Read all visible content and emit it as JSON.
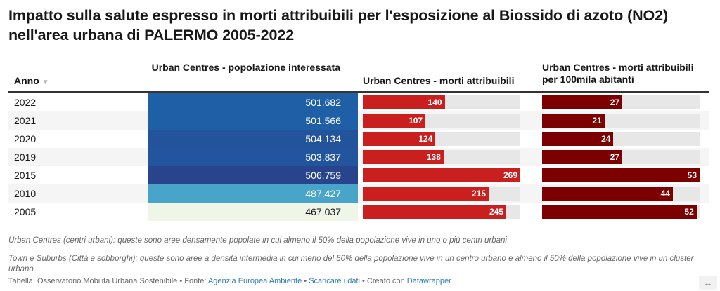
{
  "title": "Impatto sulla salute espresso in morti attribuibili per l'esposizione al Biossido di azoto (NO2) nell'area urbana di PALERMO 2005-2022",
  "columns": {
    "anno": "Anno",
    "sort_icon": "sort-down-icon",
    "popolazione": "Urban Centres - popolazione interessata",
    "morti": "Urban Centres - morti attribuibili",
    "rate": "Urban Centres - morti attribuibili per 100mila abitanti"
  },
  "colors": {
    "morti_bar": "#c91f1f",
    "rate_bar": "#7d0000",
    "bar_track": "#e7e7e7",
    "pop_scale": [
      "#eff6e8",
      "#48a5c9",
      "#1d5fa7",
      "#28448c"
    ]
  },
  "chart_data": {
    "type": "table",
    "title": "Impatto sulla salute espresso in morti attribuibili per l'esposizione al Biossido di azoto (NO2) nell'area urbana di PALERMO 2005-2022",
    "columns": [
      "Anno",
      "Urban Centres - popolazione interessata",
      "Urban Centres - morti attribuibili",
      "Urban Centres - morti attribuibili per 100mila abitanti"
    ],
    "morti_max": 269,
    "rate_max": 53,
    "rows": [
      {
        "anno": "2022",
        "popolazione": "501.682",
        "pop_value": 501682,
        "pop_color": "#1f5fa6",
        "pop_text_color": "#ffffff",
        "morti": 140,
        "rate": 27
      },
      {
        "anno": "2021",
        "popolazione": "501.566",
        "pop_value": 501566,
        "pop_color": "#1f5fa6",
        "pop_text_color": "#ffffff",
        "morti": 107,
        "rate": 21
      },
      {
        "anno": "2020",
        "popolazione": "504.134",
        "pop_value": 504134,
        "pop_color": "#22539b",
        "pop_text_color": "#ffffff",
        "morti": 124,
        "rate": 24
      },
      {
        "anno": "2019",
        "popolazione": "503.837",
        "pop_value": 503837,
        "pop_color": "#22559d",
        "pop_text_color": "#ffffff",
        "morti": 138,
        "rate": 27
      },
      {
        "anno": "2015",
        "popolazione": "506.759",
        "pop_value": 506759,
        "pop_color": "#28448c",
        "pop_text_color": "#ffffff",
        "morti": 269,
        "rate": 53
      },
      {
        "anno": "2010",
        "popolazione": "487.427",
        "pop_value": 487427,
        "pop_color": "#48a5c9",
        "pop_text_color": "#ffffff",
        "morti": 215,
        "rate": 44
      },
      {
        "anno": "2005",
        "popolazione": "467.037",
        "pop_value": 467037,
        "pop_color": "#eff6e8",
        "pop_text_color": "#181818",
        "morti": 245,
        "rate": 52
      }
    ]
  },
  "notes": [
    "Urban Centres (centri urbani): queste sono aree densamente popolate in cui almeno il 50% della popolazione vive in uno o più centri urbani",
    "Town e Suburbs (Città e sobborghi): queste sono aree a densità intermedia in cui meno del 50% della popolazione vive in un centro urbano e almeno il 50% della popolazione vive in un cluster urbano"
  ],
  "footer": {
    "prefix": "Tabella: Osservatorio Mobilità Urbana Sostenibile • Fonte: ",
    "source_link": "Agenzia Europea Ambiente",
    "sep1": " • ",
    "download_link": "Scaricare i dati",
    "sep2": " • Creato con ",
    "made_with_link": "Datawrapper"
  },
  "resize_icon": "↔"
}
